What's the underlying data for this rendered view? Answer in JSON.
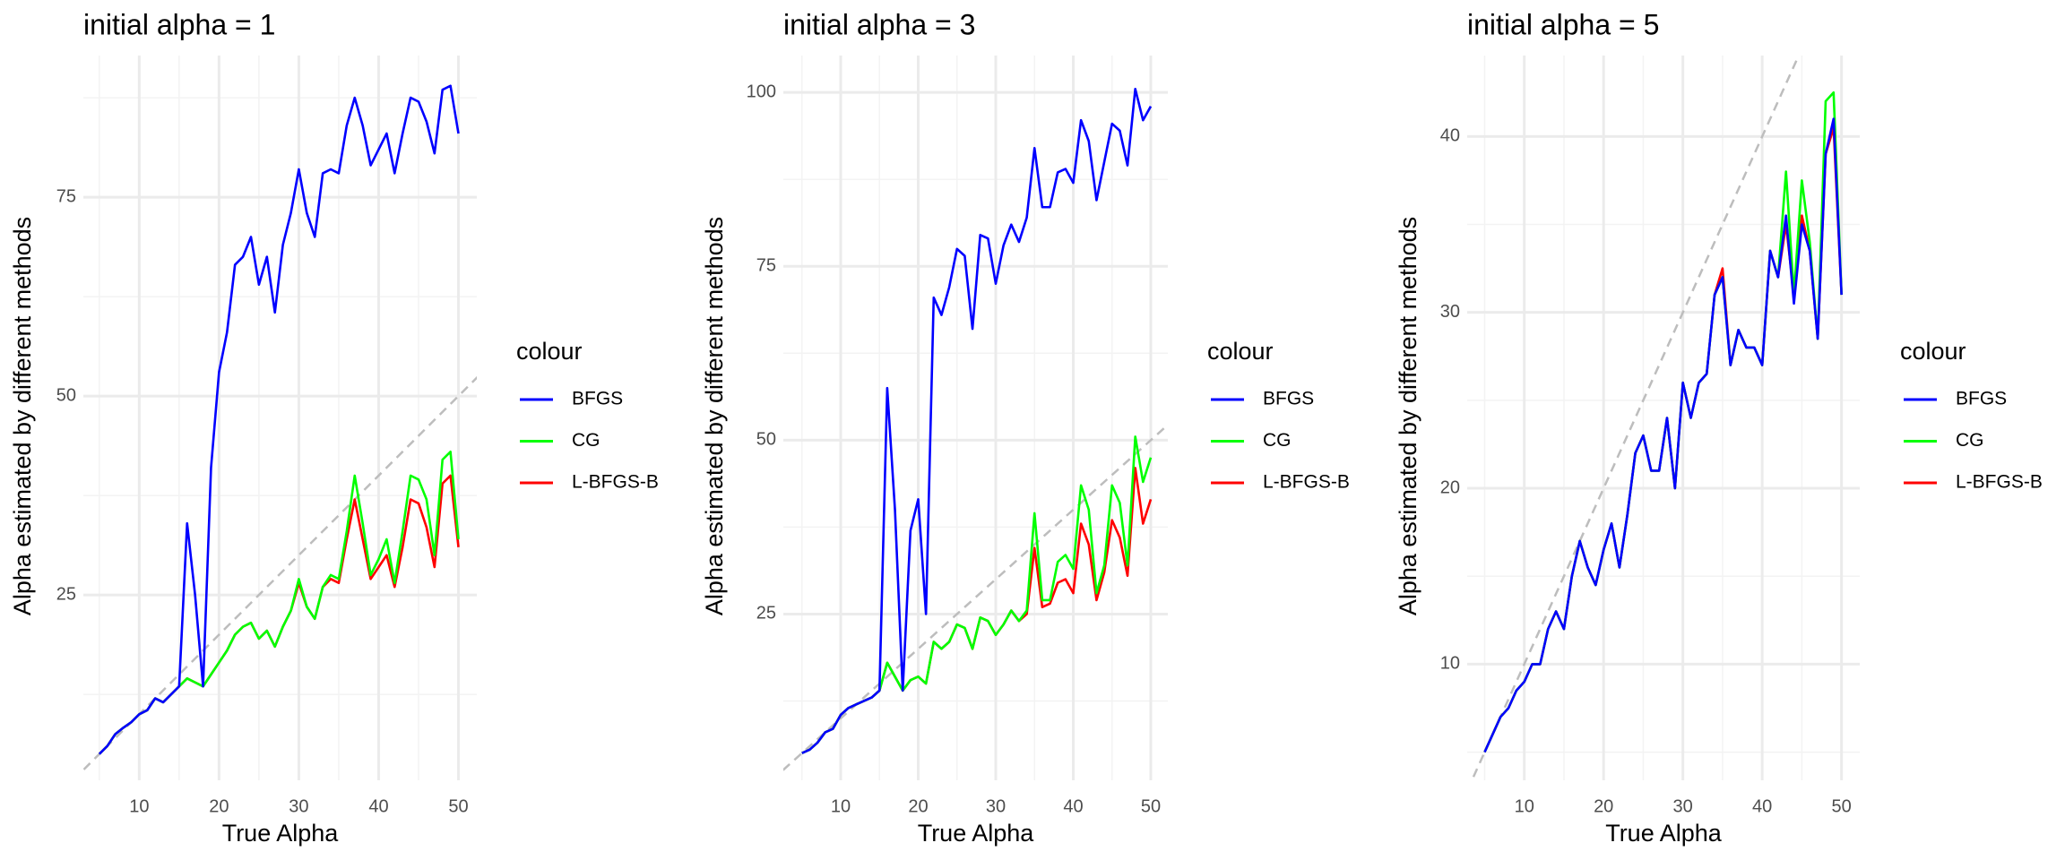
{
  "chart_data": [
    {
      "type": "line",
      "title": "initial alpha = 1",
      "x_label": "True Alpha",
      "y_label": "Alpha estimated by different methods",
      "legend_title": "colour",
      "grid": true,
      "x": [
        5,
        6,
        7,
        8,
        9,
        10,
        11,
        12,
        13,
        14,
        15,
        16,
        17,
        18,
        19,
        20,
        21,
        22,
        23,
        24,
        25,
        26,
        27,
        28,
        29,
        30,
        31,
        32,
        33,
        34,
        35,
        36,
        37,
        38,
        39,
        40,
        41,
        42,
        43,
        44,
        45,
        46,
        47,
        48,
        49,
        50
      ],
      "xlim": [
        3,
        52.3
      ],
      "xticks": [
        10,
        20,
        30,
        40,
        50
      ],
      "ylim": [
        1.7,
        92.8
      ],
      "yticks": [
        25,
        50,
        75
      ],
      "series": [
        {
          "name": "BFGS",
          "color": "#0000ff",
          "values": [
            5,
            6,
            7.5,
            8.3,
            9,
            10,
            10.5,
            12,
            11.5,
            12.5,
            13.5,
            34,
            25,
            13.5,
            41,
            53,
            58,
            66.5,
            67.5,
            70,
            64,
            67.5,
            60.5,
            69,
            73,
            78.5,
            73,
            70,
            78,
            78.5,
            78,
            84,
            87.5,
            84,
            79,
            81,
            83,
            78,
            83,
            87.5,
            87,
            84.5,
            80.5,
            88.5,
            89,
            83
          ]
        },
        {
          "name": "CG",
          "color": "#00ff00",
          "values": [
            5,
            6,
            7.5,
            8.3,
            9,
            10,
            10.5,
            12,
            11.5,
            12.5,
            13.5,
            14.5,
            14,
            13.5,
            15,
            16.5,
            18,
            20,
            21,
            21.5,
            19.5,
            20.5,
            18.5,
            21,
            23,
            27,
            23.5,
            22,
            26,
            27.5,
            27,
            33,
            40,
            34,
            27.5,
            29.5,
            32,
            26.5,
            33,
            40,
            39.5,
            37,
            30,
            42,
            43,
            32
          ]
        },
        {
          "name": "L-BFGS-B",
          "color": "#ff0000",
          "values": [
            5,
            6,
            7.5,
            8.3,
            9,
            10,
            10.5,
            12,
            11.5,
            12.5,
            13.5,
            14.5,
            14,
            13.5,
            15,
            16.5,
            18,
            20,
            21,
            21.5,
            19.5,
            20.5,
            18.5,
            21,
            23,
            26.5,
            23.5,
            22,
            26,
            27,
            26.5,
            32,
            37,
            32,
            27,
            28.5,
            30,
            26,
            31,
            37,
            36.5,
            33.5,
            28.5,
            39,
            40,
            31
          ]
        }
      ]
    },
    {
      "type": "line",
      "title": "initial alpha = 3",
      "x_label": "True Alpha",
      "y_label": "Alpha estimated by different methods",
      "legend_title": "colour",
      "grid": true,
      "x": [
        5,
        6,
        7,
        8,
        9,
        10,
        11,
        12,
        13,
        14,
        15,
        16,
        17,
        18,
        19,
        20,
        21,
        22,
        23,
        24,
        25,
        26,
        27,
        28,
        29,
        30,
        31,
        32,
        33,
        34,
        35,
        36,
        37,
        38,
        39,
        40,
        41,
        42,
        43,
        44,
        45,
        46,
        47,
        48,
        49,
        50
      ],
      "xlim": [
        2.6,
        52.2
      ],
      "xticks": [
        10,
        20,
        30,
        40,
        50
      ],
      "ylim": [
        1.1,
        105.3
      ],
      "yticks": [
        25,
        50,
        75,
        100
      ],
      "series": [
        {
          "name": "BFGS",
          "color": "#0000ff",
          "values": [
            5,
            5.5,
            6.5,
            8,
            8.5,
            10.5,
            11.5,
            12,
            12.5,
            13,
            14,
            57.5,
            40,
            14,
            37,
            41.5,
            25,
            70.5,
            68,
            72,
            77.5,
            76.5,
            66,
            79.5,
            79,
            72.5,
            78,
            81,
            78.5,
            82,
            92,
            83.5,
            83.5,
            88.5,
            89,
            87,
            96,
            93,
            84.5,
            90,
            95.5,
            94.5,
            89.5,
            100.5,
            96,
            98
          ]
        },
        {
          "name": "CG",
          "color": "#00ff00",
          "values": [
            5,
            5.5,
            6.5,
            8,
            8.5,
            10.5,
            11.5,
            12,
            12.5,
            13,
            14,
            18,
            16,
            14,
            15.5,
            16,
            15,
            21,
            20,
            21,
            23.5,
            23,
            20,
            24.5,
            24,
            22,
            23.5,
            25.5,
            24,
            25.5,
            39.5,
            27,
            27,
            32.5,
            33.5,
            31.5,
            43.5,
            40,
            28,
            32,
            43.5,
            41,
            32,
            50.5,
            44,
            47.5
          ]
        },
        {
          "name": "L-BFGS-B",
          "color": "#ff0000",
          "values": [
            5,
            5.5,
            6.5,
            8,
            8.5,
            10.5,
            11.5,
            12,
            12.5,
            13,
            14,
            18,
            16,
            14,
            15.5,
            16,
            15,
            21,
            20,
            21,
            23.5,
            23,
            20,
            24.5,
            24,
            22,
            23.5,
            25.5,
            24,
            25,
            34.5,
            26,
            26.5,
            29.5,
            30,
            28,
            38,
            35,
            27,
            31,
            38.5,
            36,
            30.5,
            46,
            38,
            41.5
          ]
        }
      ]
    },
    {
      "type": "line",
      "title": "initial alpha = 5",
      "x_label": "True Alpha",
      "y_label": "Alpha estimated by different methods",
      "legend_title": "colour",
      "grid": true,
      "x": [
        5,
        6,
        7,
        8,
        9,
        10,
        11,
        12,
        13,
        14,
        15,
        16,
        17,
        18,
        19,
        20,
        21,
        22,
        23,
        24,
        25,
        26,
        27,
        28,
        29,
        30,
        31,
        32,
        33,
        34,
        35,
        36,
        37,
        38,
        39,
        40,
        41,
        42,
        43,
        44,
        45,
        46,
        47,
        48,
        49,
        50
      ],
      "xlim": [
        2.8,
        52.3
      ],
      "xticks": [
        10,
        20,
        30,
        40,
        50
      ],
      "ylim": [
        3.4,
        44.6
      ],
      "yticks": [
        10,
        20,
        30,
        40
      ],
      "series": [
        {
          "name": "BFGS",
          "color": "#0000ff",
          "values": [
            5,
            6,
            7,
            7.5,
            8.5,
            9,
            10,
            10,
            12,
            13,
            12,
            15,
            17,
            15.5,
            14.5,
            16.5,
            18,
            15.5,
            18.5,
            22,
            23,
            21,
            21,
            24,
            20,
            26,
            24,
            26,
            26.5,
            31,
            32,
            27,
            29,
            28,
            28,
            27,
            33.5,
            32,
            35.5,
            30.5,
            35,
            33.5,
            28.5,
            39,
            41,
            31
          ]
        },
        {
          "name": "CG",
          "color": "#00ff00",
          "values": [
            5,
            6,
            7,
            7.5,
            8.5,
            9,
            10,
            10,
            12,
            13,
            12,
            15,
            17,
            15.5,
            14.5,
            16.5,
            18,
            15.5,
            18.5,
            22,
            23,
            21,
            21,
            24,
            20,
            26,
            24,
            26,
            26.5,
            31,
            32,
            27,
            29,
            28,
            28,
            27,
            33.5,
            32,
            38,
            31,
            37.5,
            34,
            28.5,
            42,
            42.5,
            31
          ]
        },
        {
          "name": "L-BFGS-B",
          "color": "#ff0000",
          "values": [
            5,
            6,
            7,
            7.5,
            8.5,
            9,
            10,
            10,
            12,
            13,
            12,
            15,
            17,
            15.5,
            14.5,
            16.5,
            18,
            15.5,
            18.5,
            22,
            23,
            21,
            21,
            24,
            20,
            26,
            24,
            26,
            26.5,
            31,
            32.5,
            27,
            29,
            28,
            28,
            27,
            33.5,
            32,
            35,
            31,
            35.5,
            33.5,
            28.5,
            39,
            40.5,
            31
          ]
        }
      ]
    }
  ]
}
